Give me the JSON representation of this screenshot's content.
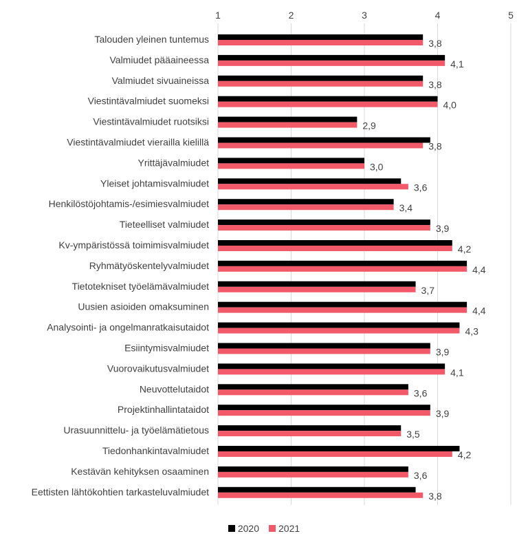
{
  "chart_data": {
    "type": "bar",
    "orientation": "horizontal",
    "xlim": [
      1,
      5
    ],
    "x_ticks": [
      "1",
      "2",
      "3",
      "4",
      "5"
    ],
    "grid": "vertical",
    "legend_position": "bottom",
    "categories": [
      "Talouden yleinen tuntemus",
      "Valmiudet pääaineessa",
      "Valmiudet sivuaineissa",
      "Viestintävalmiudet suomeksi",
      "Viestintävalmiudet ruotsiksi",
      "Viestintävalmiudet vierailla kielillä",
      "Yrittäjävalmiudet",
      "Yleiset johtamisvalmiudet",
      "Henkilöstöjohtamis-/esimiesvalmiudet",
      "Tieteelliset valmiudet",
      "Kv-ympäristössä toimimisvalmiudet",
      "Ryhmätyöskentelyvalmiudet",
      "Tietotekniset työelämävalmiudet",
      "Uusien asioiden omaksuminen",
      "Analysointi- ja ongelmanratkaisutaidot",
      "Esiintymisvalmiudet",
      "Vuorovaikutusvalmiudet",
      "Neuvottelutaidot",
      "Projektinhallintataidot",
      "Urasuunnittelu- ja työelämätietous",
      "Tiedonhankintavalmiudet",
      "Kestävän kehityksen osaaminen",
      "Eettisten lähtökohtien tarkasteluvalmiudet"
    ],
    "series": [
      {
        "name": "2020",
        "color": "#000000",
        "values": [
          3.8,
          4.1,
          3.8,
          4.0,
          2.9,
          3.9,
          3.0,
          3.5,
          3.4,
          3.9,
          4.2,
          4.4,
          3.7,
          4.4,
          4.3,
          3.9,
          4.1,
          3.6,
          3.9,
          3.5,
          4.3,
          3.6,
          3.7
        ]
      },
      {
        "name": "2021",
        "color": "#f25a6a",
        "values": [
          3.8,
          4.1,
          3.8,
          4.0,
          2.9,
          3.8,
          3.0,
          3.6,
          3.4,
          3.9,
          4.2,
          4.4,
          3.7,
          4.4,
          4.3,
          3.9,
          4.1,
          3.6,
          3.9,
          3.5,
          4.2,
          3.6,
          3.8
        ]
      }
    ],
    "data_labels": [
      "3,8",
      "4,1",
      "3,8",
      "4,0",
      "2,9",
      "3,8",
      "3,0",
      "3,6",
      "3,4",
      "3,9",
      "4,2",
      "4,4",
      "3,7",
      "4,4",
      "4,3",
      "3,9",
      "4,1",
      "3,6",
      "3,9",
      "3,5",
      "4,2",
      "3,6",
      "3,8"
    ]
  }
}
